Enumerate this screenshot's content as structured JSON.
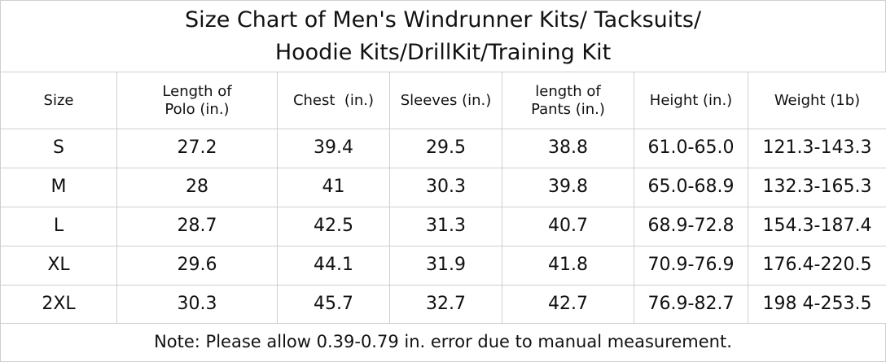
{
  "title": [
    "Size Chart of Men's Windrunner Kits/ Tacksuits/",
    "Hoodie Kits/DrillKit/Training Kit"
  ],
  "table": {
    "header": [
      [
        "Size"
      ],
      [
        "Length of",
        "Polo (in.)"
      ],
      [
        "Chest  (in.)"
      ],
      [
        "Sleeves (in.)"
      ],
      [
        "length of",
        "Pants (in.)"
      ],
      [
        "Height (in.)"
      ],
      [
        "Weight (1b)"
      ]
    ],
    "rows": [
      [
        "S",
        "27.2",
        "39.4",
        "29.5",
        "38.8",
        "61.0-65.0",
        "121.3-143.3"
      ],
      [
        "M",
        "28",
        "41",
        "30.3",
        "39.8",
        "65.0-68.9",
        "132.3-165.3"
      ],
      [
        "L",
        "28.7",
        "42.5",
        "31.3",
        "40.7",
        "68.9-72.8",
        "154.3-187.4"
      ],
      [
        "XL",
        "29.6",
        "44.1",
        "31.9",
        "41.8",
        "70.9-76.9",
        "176.4-220.5"
      ],
      [
        "2XL",
        "30.3",
        "45.7",
        "32.7",
        "42.7",
        "76.9-82.7",
        "198 4-253.5"
      ]
    ]
  },
  "note": "Note: Please allow 0.39-0.79 in. error due to manual measurement."
}
